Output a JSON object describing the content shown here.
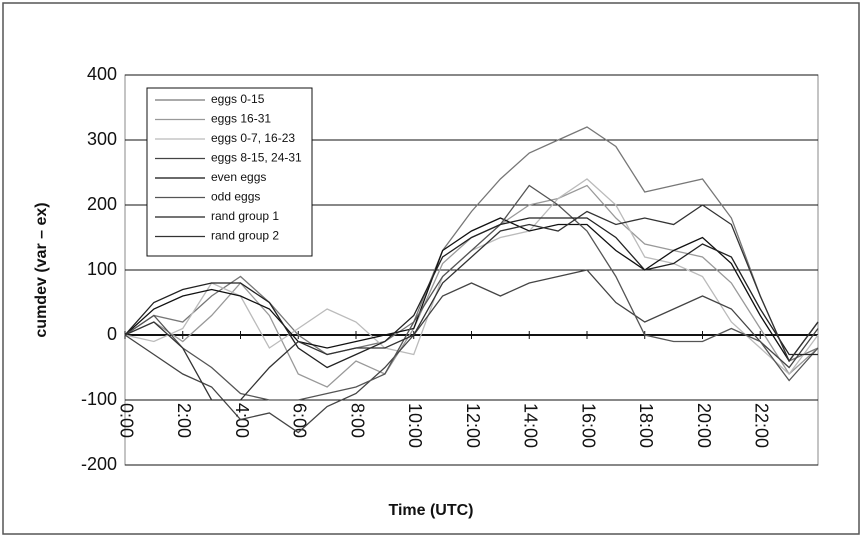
{
  "chart_data": {
    "type": "line",
    "xlabel": "Time (UTC)",
    "ylabel": "cumdev  (var – ex)",
    "x": [
      0,
      1,
      2,
      3,
      4,
      5,
      6,
      7,
      8,
      9,
      10,
      11,
      12,
      13,
      14,
      15,
      16,
      17,
      18,
      19,
      20,
      21,
      22,
      23,
      24
    ],
    "xlim": [
      0,
      24
    ],
    "ylim": [
      -200,
      400
    ],
    "xticks": [
      {
        "value": 0,
        "label": "0:00"
      },
      {
        "value": 2,
        "label": "2:00"
      },
      {
        "value": 4,
        "label": "4:00"
      },
      {
        "value": 6,
        "label": "6:00"
      },
      {
        "value": 8,
        "label": "8:00"
      },
      {
        "value": 10,
        "label": "10:00"
      },
      {
        "value": 12,
        "label": "12:00"
      },
      {
        "value": 14,
        "label": "14:00"
      },
      {
        "value": 16,
        "label": "16:00"
      },
      {
        "value": 18,
        "label": "18:00"
      },
      {
        "value": 20,
        "label": "20:00"
      },
      {
        "value": 22,
        "label": "22:00"
      }
    ],
    "yticks": [
      -200,
      -100,
      0,
      100,
      200,
      300,
      400
    ],
    "grid": true,
    "legend": "upper left",
    "series": [
      {
        "name": "eggs 0-15",
        "color": "#777777",
        "values": [
          0,
          30,
          20,
          60,
          90,
          50,
          0,
          -30,
          -20,
          -10,
          20,
          130,
          190,
          240,
          280,
          300,
          320,
          290,
          220,
          230,
          240,
          180,
          60,
          -40,
          -20
        ]
      },
      {
        "name": "eggs 16-31",
        "color": "#999999",
        "values": [
          0,
          20,
          -10,
          30,
          80,
          30,
          -60,
          -80,
          -40,
          -60,
          10,
          110,
          150,
          170,
          200,
          210,
          230,
          180,
          140,
          130,
          120,
          80,
          10,
          -60,
          -20
        ]
      },
      {
        "name": "eggs 0-7, 16-23",
        "color": "#bbbbbb",
        "values": [
          0,
          -10,
          10,
          80,
          60,
          -20,
          10,
          40,
          20,
          -20,
          -30,
          90,
          130,
          150,
          160,
          210,
          240,
          200,
          120,
          110,
          90,
          20,
          -20,
          -60,
          0
        ]
      },
      {
        "name": "eggs 8-15, 24-31",
        "color": "#444444",
        "values": [
          0,
          -30,
          -60,
          -80,
          -130,
          -120,
          -150,
          -110,
          -90,
          -50,
          0,
          60,
          80,
          60,
          80,
          90,
          100,
          50,
          20,
          40,
          60,
          40,
          -10,
          -50,
          10
        ]
      },
      {
        "name": "even eggs",
        "color": "#111111",
        "values": [
          0,
          40,
          60,
          70,
          60,
          40,
          -10,
          -20,
          -10,
          0,
          10,
          130,
          160,
          180,
          160,
          170,
          170,
          130,
          100,
          130,
          150,
          110,
          30,
          -40,
          20
        ]
      },
      {
        "name": "odd eggs",
        "color": "#555555",
        "values": [
          0,
          30,
          -20,
          -50,
          -90,
          -100,
          -100,
          -90,
          -80,
          -60,
          20,
          90,
          130,
          170,
          230,
          200,
          160,
          90,
          0,
          -10,
          -10,
          10,
          -10,
          -70,
          -20
        ]
      },
      {
        "name": "rand group 1",
        "color": "#222222",
        "values": [
          0,
          50,
          70,
          80,
          80,
          50,
          -20,
          -50,
          -30,
          -10,
          30,
          120,
          150,
          170,
          180,
          180,
          180,
          150,
          100,
          110,
          140,
          120,
          40,
          -30,
          -30
        ]
      },
      {
        "name": "rand group 2",
        "color": "#333333",
        "values": [
          0,
          20,
          -20,
          -100,
          -100,
          -50,
          -10,
          -30,
          -20,
          -20,
          0,
          80,
          120,
          160,
          170,
          160,
          190,
          170,
          180,
          170,
          200,
          170,
          60,
          -40,
          20
        ]
      }
    ]
  }
}
